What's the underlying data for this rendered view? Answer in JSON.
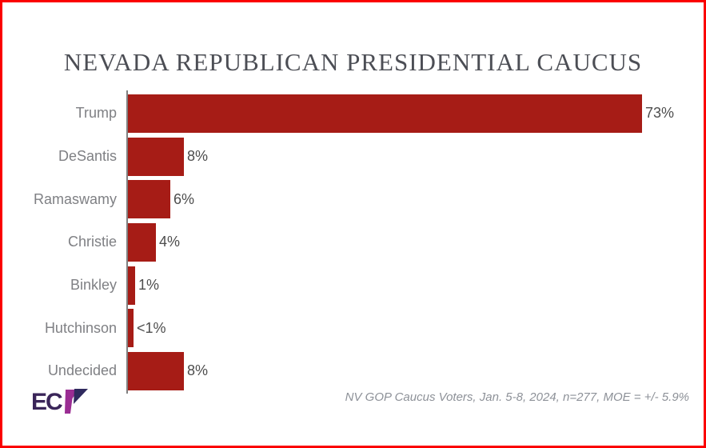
{
  "frame": {
    "border_color": "#fb0000",
    "background_color": "#ffffff"
  },
  "chart_data": {
    "type": "bar",
    "orientation": "horizontal",
    "title": "NEVADA REPUBLICAN PRESIDENTIAL CAUCUS",
    "categories": [
      "Trump",
      "DeSantis",
      "Ramaswamy",
      "Christie",
      "Binkley",
      "Hutchinson",
      "Undecided"
    ],
    "values": [
      73,
      8,
      6,
      4,
      1,
      0.8,
      8
    ],
    "value_labels": [
      "73%",
      "8%",
      "6%",
      "4%",
      "1%",
      "<1%",
      "8%"
    ],
    "xlabel": "",
    "ylabel": "",
    "xlim": [
      0,
      78
    ],
    "grid": false,
    "legend": false,
    "bar_color": "#a61c16",
    "axis_color": "#808080",
    "category_label_color": "#7f8084",
    "value_label_color": "#4d4d4d",
    "footnote": "NV GOP Caucus Voters, Jan. 5-8, 2024, n=277, MOE = +/- 5.9%"
  },
  "logo": {
    "letters": "EC",
    "alt": "ECP",
    "dark_color": "#3a2559",
    "magenta_color": "#9a2d93",
    "navy_color": "#2f2a5e"
  }
}
